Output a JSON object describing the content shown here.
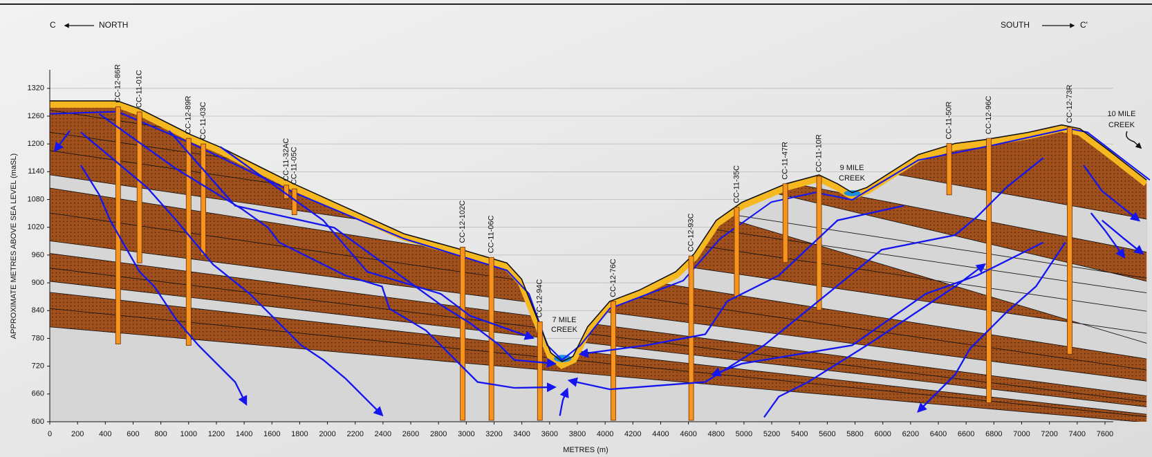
{
  "chart_data": {
    "type": "cross-section",
    "section": {
      "start": "C",
      "start_direction": "NORTH",
      "end_direction": "SOUTH",
      "end": "C'"
    },
    "x_label": "METRES (m)",
    "y_label": "APPROXIMATE METRES ABOVE SEA LEVEL (maSL)",
    "xlim": [
      0,
      7660
    ],
    "ylim": [
      600,
      1360
    ],
    "xticks": [
      0,
      200,
      400,
      600,
      800,
      1000,
      1200,
      1400,
      1600,
      1800,
      2000,
      2200,
      2400,
      2600,
      2800,
      3000,
      3200,
      3400,
      3600,
      3800,
      4000,
      4200,
      4400,
      4600,
      4800,
      5000,
      5200,
      5400,
      5600,
      5800,
      6000,
      6200,
      6400,
      6600,
      6800,
      7000,
      7200,
      7400,
      7600
    ],
    "yticks": [
      600,
      660,
      720,
      780,
      840,
      900,
      960,
      1020,
      1080,
      1140,
      1200,
      1260,
      1320
    ],
    "grid": true,
    "borehole_color": "#f7941d",
    "ground": {
      "x": [
        0,
        487,
        646,
        1016,
        1228,
        1757,
        2551,
        2974,
        3292,
        3398,
        3504,
        3609,
        3689,
        3768,
        3874,
        4033,
        4245,
        4509,
        4642,
        4800,
        4986,
        5303,
        5541,
        5674,
        5779,
        5885,
        6256,
        6520,
        6732,
        7050,
        7288,
        7420,
        7632,
        7900
      ],
      "y": [
        1293,
        1293,
        1276,
        1220,
        1193,
        1114,
        1006,
        971,
        943,
        908,
        828,
        749,
        730,
        741,
        805,
        860,
        884,
        924,
        963,
        1035,
        1074,
        1114,
        1133,
        1114,
        1095,
        1106,
        1177,
        1201,
        1209,
        1225,
        1241,
        1233,
        1185,
        1122
      ]
    },
    "boreholes": [
      {
        "name": "CC-12-86R",
        "x": 492,
        "top": 1280,
        "bottom": 768
      },
      {
        "name": "CC-11-01C",
        "x": 646,
        "top": 1269,
        "bottom": 943
      },
      {
        "name": "CC-12-89R",
        "x": 1000,
        "top": 1212,
        "bottom": 765
      },
      {
        "name": "CC-11-03C",
        "x": 1106,
        "top": 1200,
        "bottom": 960
      },
      {
        "name": "CC-11-32AC",
        "x": 1704,
        "top": 1111,
        "bottom": 1082
      },
      {
        "name": "CC-11-05C",
        "x": 1762,
        "top": 1103,
        "bottom": 1047
      },
      {
        "name": "CC-12-102C",
        "x": 2974,
        "top": 977,
        "bottom": 603
      },
      {
        "name": "CC-11-06C",
        "x": 3181,
        "top": 955,
        "bottom": 603
      },
      {
        "name": "CC-12-94C",
        "x": 3530,
        "top": 816,
        "bottom": 603
      },
      {
        "name": "CC-12-76C",
        "x": 4059,
        "top": 860,
        "bottom": 603
      },
      {
        "name": "CC-12-93C",
        "x": 4620,
        "top": 958,
        "bottom": 603
      },
      {
        "name": "CC-11-35C",
        "x": 4948,
        "top": 1063,
        "bottom": 868
      },
      {
        "name": "CC-11-47R",
        "x": 5298,
        "top": 1114,
        "bottom": 944
      },
      {
        "name": "CC-11-10R",
        "x": 5541,
        "top": 1130,
        "bottom": 841
      },
      {
        "name": "CC-11-50R",
        "x": 6478,
        "top": 1201,
        "bottom": 1090
      },
      {
        "name": "CC-12-96C",
        "x": 6764,
        "top": 1212,
        "bottom": 641
      },
      {
        "name": "CC-12-73R",
        "x": 7346,
        "top": 1236,
        "bottom": 746
      }
    ],
    "creek_labels": [
      [
        "7 MILE",
        "CREEK"
      ],
      [
        "9 MILE",
        "CREEK"
      ],
      [
        "10 MILE",
        "CREEK"
      ]
    ]
  }
}
